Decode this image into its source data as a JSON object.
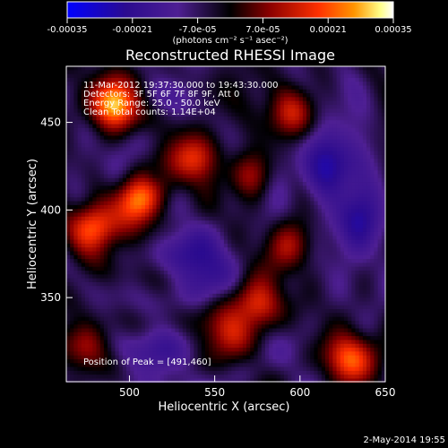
{
  "chart_data": {
    "type": "heatmap",
    "title": "Reconstructed RHESSI Image",
    "xlabel": "Heliocentric X (arcsec)",
    "ylabel": "Heliocentric Y (arcsec)",
    "xlim": [
      463,
      650
    ],
    "ylim": [
      302,
      482
    ],
    "x_ticks": [
      500,
      550,
      600,
      650
    ],
    "y_ticks": [
      350,
      400,
      450
    ],
    "colorbar": {
      "range": [
        -0.00035,
        0.00035
      ],
      "ticks": [
        "-0.00035",
        "-0.00021",
        "-7.0e-05",
        "7.0e-05",
        "0.00021",
        "0.00035"
      ],
      "label": "(photons cm⁻² s⁻¹ asec⁻²)",
      "colors": [
        "#0000ff",
        "#2b0b8f",
        "#4e1f93",
        "#000000",
        "#8a0000",
        "#ff3000",
        "#ff9500",
        "#ffff88",
        "#ffffff"
      ]
    },
    "annotations": [
      "11-Mar-2012 19:37:30.000 to 19:43:30.000",
      "Detectors: 3F 5F 6F 7F 8F 9F, Att 0",
      "Energy Range: 25.0 - 50.0 keV",
      "Clean     Total counts: 1.14E+04"
    ],
    "peak_text": "Position of Peak = [491,460]",
    "peak": [
      491,
      460
    ],
    "hotspots": [
      {
        "x": 491,
        "y": 460,
        "value": 1.0
      },
      {
        "x": 505,
        "y": 405,
        "value": 0.86
      },
      {
        "x": 478,
        "y": 390,
        "value": 0.74
      },
      {
        "x": 538,
        "y": 430,
        "value": 0.55
      },
      {
        "x": 595,
        "y": 455,
        "value": 0.48
      },
      {
        "x": 570,
        "y": 420,
        "value": 0.42
      },
      {
        "x": 595,
        "y": 380,
        "value": 0.35
      },
      {
        "x": 576,
        "y": 345,
        "value": 0.62
      },
      {
        "x": 560,
        "y": 330,
        "value": 0.5
      },
      {
        "x": 628,
        "y": 315,
        "value": 0.72
      },
      {
        "x": 475,
        "y": 325,
        "value": 0.44
      }
    ],
    "coldspots": [
      {
        "x": 620,
        "y": 425,
        "value": -0.55
      },
      {
        "x": 635,
        "y": 395,
        "value": -0.42
      },
      {
        "x": 540,
        "y": 370,
        "value": -0.38
      },
      {
        "x": 520,
        "y": 315,
        "value": -0.28
      }
    ]
  },
  "footer": {
    "timestamp": "2-May-2014 19:55"
  }
}
